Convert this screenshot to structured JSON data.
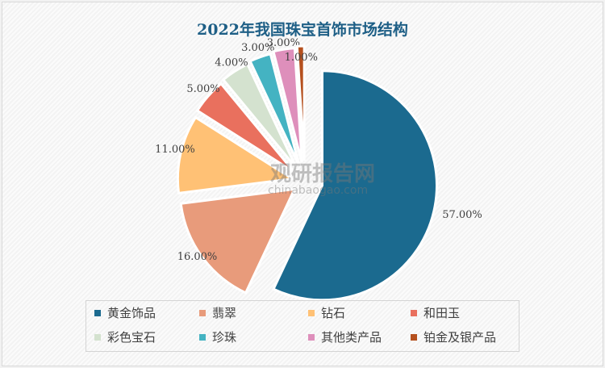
{
  "chart_data": {
    "type": "pie",
    "title": "2022年我国珠宝首饰市场结构",
    "start_angle": "top",
    "direction": "clockwise",
    "exploded": true,
    "legend_position": "bottom",
    "slices": [
      {
        "label": "黄金饰品",
        "value": 57,
        "display": "57.00%",
        "color": "#1b6a8f"
      },
      {
        "label": "翡翠",
        "value": 16,
        "display": "16.00%",
        "color": "#e89b7b"
      },
      {
        "label": "钻石",
        "value": 11,
        "display": "11.00%",
        "color": "#ffc175"
      },
      {
        "label": "和田玉",
        "value": 5,
        "display": "5.00%",
        "color": "#e9705e"
      },
      {
        "label": "彩色宝石",
        "value": 4,
        "display": "4.00%",
        "color": "#d4e2cf"
      },
      {
        "label": "珍珠",
        "value": 3,
        "display": "3.00%",
        "color": "#44b3c2"
      },
      {
        "label": "其他类产品",
        "value": 3,
        "display": "3.00%",
        "color": "#de8fbb"
      },
      {
        "label": "铂金及银产品",
        "value": 1,
        "display": "1.00%",
        "color": "#b5501e"
      }
    ]
  },
  "watermark": {
    "name": "观研报告网",
    "url": "chinabaogao.com"
  }
}
